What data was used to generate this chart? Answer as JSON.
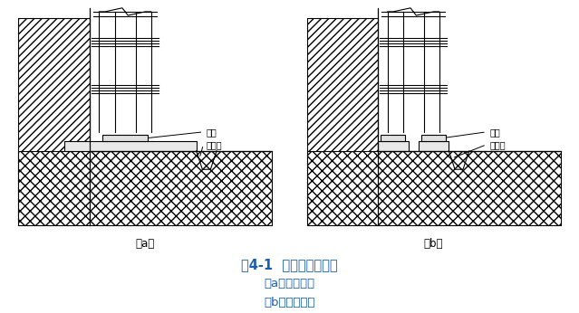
{
  "title": "图4-1  普通脚手架基底",
  "subtitle_a": "（a）横铺垫板",
  "subtitle_b": "（b）顺铺垫板",
  "label_a": "（a）",
  "label_b": "（b）",
  "label_dianmu": "垫木",
  "label_paishugou": "排水沟",
  "bg_color": "#ffffff",
  "line_color": "#000000",
  "title_color": "#1a5ead",
  "subtitle_color": "#1a5ead",
  "title_fontsize": 10.5,
  "subtitle_fontsize": 9.5,
  "caption_fontsize": 8.5
}
